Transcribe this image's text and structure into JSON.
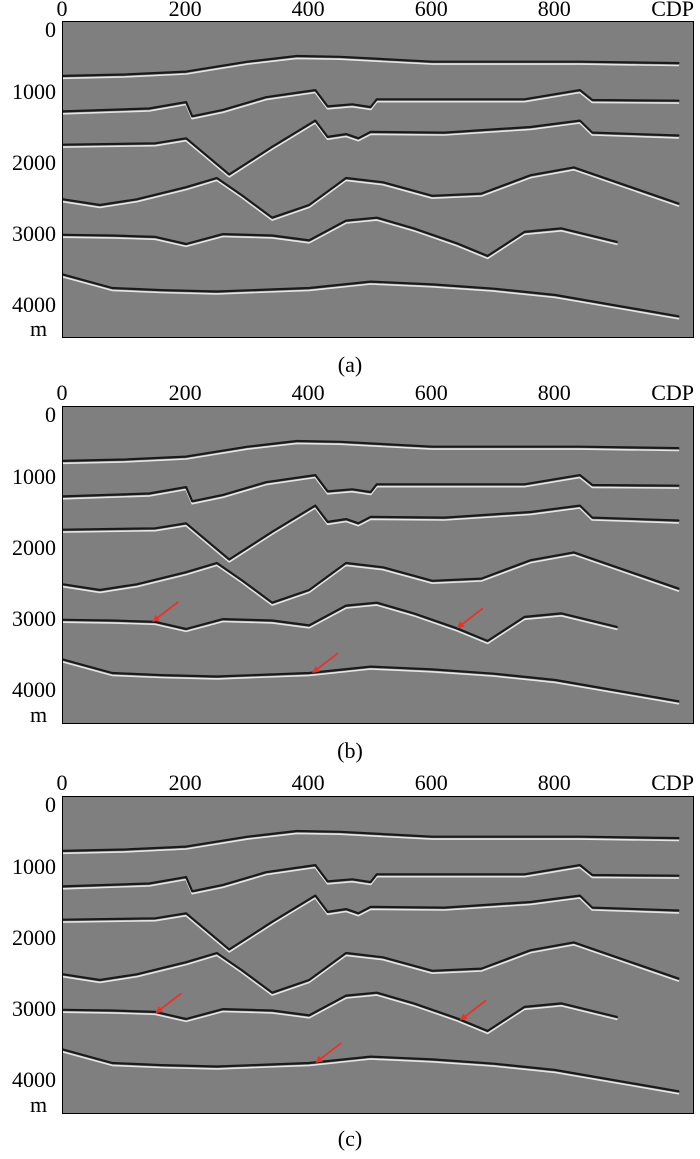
{
  "panels": [
    {
      "id": "a",
      "caption": "(a)",
      "x_ticks": [
        "0",
        "200",
        "400",
        "600",
        "800"
      ],
      "x_unit": "CDP",
      "y_ticks": [
        "0",
        "1000",
        "2000",
        "3000",
        "4000"
      ],
      "y_unit": "m",
      "arrows": []
    },
    {
      "id": "b",
      "caption": "(b)",
      "x_ticks": [
        "0",
        "200",
        "400",
        "600",
        "800"
      ],
      "x_unit": "CDP",
      "y_ticks": [
        "0",
        "1000",
        "2000",
        "3000",
        "4000"
      ],
      "y_unit": "m",
      "arrows": [
        {
          "cdp": 145,
          "depth": 3030
        },
        {
          "cdp": 640,
          "depth": 3120
        },
        {
          "cdp": 405,
          "depth": 3750
        }
      ]
    },
    {
      "id": "c",
      "caption": "(c)",
      "x_ticks": [
        "0",
        "200",
        "400",
        "600",
        "800"
      ],
      "x_unit": "CDP",
      "y_ticks": [
        "0",
        "1000",
        "2000",
        "3000",
        "4000"
      ],
      "y_unit": "m",
      "arrows": [
        {
          "cdp": 150,
          "depth": 3050
        },
        {
          "cdp": 645,
          "depth": 3150
        },
        {
          "cdp": 410,
          "depth": 3750
        }
      ]
    }
  ],
  "colors": {
    "background": "#7f7f7f",
    "reflector_dark": "#1a1a1a",
    "reflector_light": "#f2f2f2",
    "arrow": "#e8332a"
  },
  "chart_data": {
    "type": "seismic-section",
    "x_range": [
      0,
      1000
    ],
    "y_range": [
      0,
      4400
    ],
    "horizons": [
      {
        "points": [
          [
            0,
            760
          ],
          [
            100,
            740
          ],
          [
            200,
            700
          ],
          [
            300,
            560
          ],
          [
            380,
            480
          ],
          [
            450,
            490
          ],
          [
            600,
            560
          ],
          [
            840,
            560
          ],
          [
            1000,
            580
          ]
        ]
      },
      {
        "points": [
          [
            0,
            1260
          ],
          [
            140,
            1220
          ],
          [
            200,
            1130
          ],
          [
            210,
            1330
          ],
          [
            260,
            1240
          ],
          [
            330,
            1060
          ],
          [
            410,
            960
          ],
          [
            430,
            1190
          ],
          [
            470,
            1160
          ],
          [
            500,
            1200
          ],
          [
            510,
            1090
          ],
          [
            600,
            1090
          ],
          [
            750,
            1090
          ],
          [
            840,
            960
          ],
          [
            860,
            1100
          ],
          [
            1000,
            1110
          ]
        ]
      },
      {
        "points": [
          [
            0,
            1730
          ],
          [
            150,
            1710
          ],
          [
            200,
            1640
          ],
          [
            270,
            2150
          ],
          [
            340,
            1760
          ],
          [
            410,
            1390
          ],
          [
            430,
            1620
          ],
          [
            460,
            1580
          ],
          [
            480,
            1640
          ],
          [
            500,
            1550
          ],
          [
            620,
            1560
          ],
          [
            760,
            1480
          ],
          [
            840,
            1390
          ],
          [
            860,
            1560
          ],
          [
            1000,
            1600
          ]
        ]
      },
      {
        "points": [
          [
            0,
            2500
          ],
          [
            60,
            2580
          ],
          [
            120,
            2500
          ],
          [
            200,
            2330
          ],
          [
            250,
            2200
          ],
          [
            290,
            2440
          ],
          [
            340,
            2760
          ],
          [
            400,
            2580
          ],
          [
            460,
            2200
          ],
          [
            520,
            2260
          ],
          [
            600,
            2450
          ],
          [
            680,
            2420
          ],
          [
            760,
            2160
          ],
          [
            830,
            2050
          ],
          [
            1000,
            2560
          ]
        ]
      },
      {
        "points": [
          [
            0,
            3000
          ],
          [
            80,
            3010
          ],
          [
            150,
            3030
          ],
          [
            200,
            3130
          ],
          [
            260,
            2990
          ],
          [
            340,
            3010
          ],
          [
            400,
            3080
          ],
          [
            460,
            2800
          ],
          [
            510,
            2760
          ],
          [
            570,
            2910
          ],
          [
            640,
            3120
          ],
          [
            690,
            3300
          ],
          [
            750,
            2960
          ],
          [
            810,
            2910
          ],
          [
            900,
            3100
          ]
        ]
      },
      {
        "points": [
          [
            0,
            3560
          ],
          [
            80,
            3750
          ],
          [
            160,
            3780
          ],
          [
            250,
            3800
          ],
          [
            400,
            3750
          ],
          [
            500,
            3660
          ],
          [
            600,
            3700
          ],
          [
            700,
            3760
          ],
          [
            800,
            3850
          ],
          [
            1000,
            4150
          ]
        ]
      }
    ]
  }
}
